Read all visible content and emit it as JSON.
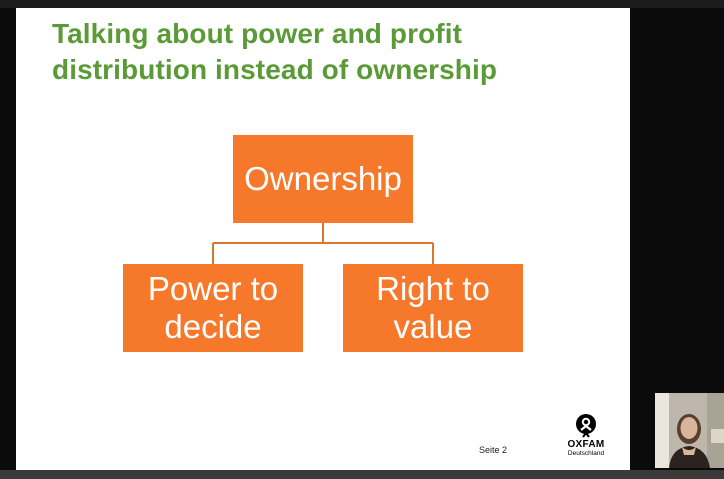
{
  "slide": {
    "title": "Talking about power and profit distribution instead of ownership",
    "page_label": "Seite 2",
    "diagram": {
      "root": "Ownership",
      "children": [
        "Power to decide",
        "Right to value"
      ]
    },
    "logo": {
      "name": "OXFAM",
      "subtitle": "Deutschland"
    }
  },
  "colors": {
    "title_green": "#5a9a37",
    "box_orange": "#f6782a",
    "connector": "#d9772f"
  }
}
